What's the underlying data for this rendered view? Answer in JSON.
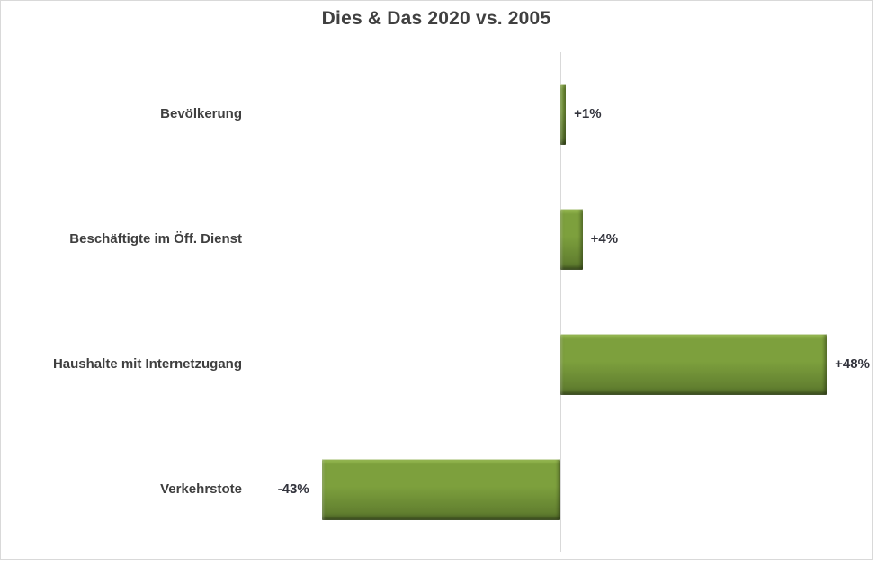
{
  "window": {
    "background": "#FFFFFF",
    "frame_border_color": "#D9D9D9"
  },
  "chart_data": {
    "type": "bar",
    "orientation": "horizontal",
    "title": "Dies & Das 2020 vs. 2005",
    "categories": [
      "Bevölkerung",
      "Beschäftigte im Öff. Dienst",
      "Haushalte mit Internetzugang",
      "Verkehrstote"
    ],
    "values": [
      1,
      4,
      48,
      -43
    ],
    "data_labels": [
      "+1%",
      "+4%",
      "+48%",
      "-43%"
    ],
    "value_unit": "%",
    "xlim": [
      -45,
      52
    ],
    "grid": false,
    "legend": false,
    "bar_color": "#7DA03D",
    "bar_color_light": "#9FC257",
    "bar_color_dark": "#5E7B2E",
    "bar_edge_dark": "#4D6526",
    "axis_color": "#D9D9D9",
    "title_color": "#404040",
    "category_label_color": "#3F3F3F",
    "data_label_color": "#32333C"
  }
}
